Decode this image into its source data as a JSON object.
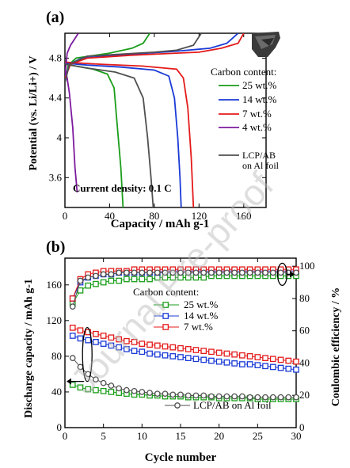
{
  "watermark": "Journal Pre-proof",
  "chart_data": [
    {
      "panel": "(a)",
      "type": "line",
      "xlabel": "Capacity / mAh g-1",
      "ylabel": "Potential (vs. Li/Li+) / V",
      "xlim": [
        0,
        180
      ],
      "ylim": [
        3.3,
        5.05
      ],
      "xticks": [
        "0",
        "40",
        "80",
        "120",
        "160"
      ],
      "yticks": [
        "3.6",
        "4",
        "4.4",
        "4.8"
      ],
      "legend_title": "Carbon content:",
      "legend_position": "right",
      "annotation": "Current density: 0.1 C",
      "inset_image": "photo of electrode film",
      "series": [
        {
          "name": "25 wt.%",
          "color": "#1a9e1a",
          "charge": [
            [
              0,
              4.55
            ],
            [
              3,
              4.73
            ],
            [
              10,
              4.8
            ],
            [
              40,
              4.85
            ],
            [
              60,
              4.9
            ],
            [
              70,
              4.95
            ],
            [
              76,
              5.05
            ]
          ],
          "discharge": [
            [
              0,
              4.74
            ],
            [
              10,
              4.72
            ],
            [
              25,
              4.69
            ],
            [
              38,
              4.64
            ],
            [
              44,
              4.5
            ],
            [
              47,
              4.1
            ],
            [
              50,
              3.7
            ],
            [
              52,
              3.3
            ]
          ]
        },
        {
          "name": "14 wt.%",
          "color": "#1a3ad6",
          "charge": [
            [
              0,
              4.58
            ],
            [
              4,
              4.74
            ],
            [
              15,
              4.8
            ],
            [
              60,
              4.84
            ],
            [
              100,
              4.87
            ],
            [
              130,
              4.9
            ],
            [
              145,
              4.95
            ],
            [
              155,
              5.05
            ]
          ],
          "discharge": [
            [
              0,
              4.75
            ],
            [
              20,
              4.73
            ],
            [
              50,
              4.71
            ],
            [
              80,
              4.68
            ],
            [
              93,
              4.62
            ],
            [
              98,
              4.4
            ],
            [
              101,
              4.0
            ],
            [
              103,
              3.6
            ],
            [
              104,
              3.3
            ]
          ]
        },
        {
          "name": "7 wt.%",
          "color": "#e41a1a",
          "charge": [
            [
              0,
              4.6
            ],
            [
              5,
              4.74
            ],
            [
              20,
              4.8
            ],
            [
              60,
              4.83
            ],
            [
              100,
              4.85
            ],
            [
              120,
              4.86
            ],
            [
              140,
              4.9
            ],
            [
              155,
              4.95
            ],
            [
              160,
              5.05
            ]
          ],
          "discharge": [
            [
              0,
              4.76
            ],
            [
              30,
              4.74
            ],
            [
              70,
              4.72
            ],
            [
              100,
              4.69
            ],
            [
              106,
              4.6
            ],
            [
              110,
              4.3
            ],
            [
              113,
              3.8
            ],
            [
              115,
              3.3
            ]
          ]
        },
        {
          "name": "4 wt.%",
          "color": "#7d1a9e",
          "charge": [
            [
              0,
              4.62
            ],
            [
              2,
              4.85
            ],
            [
              5,
              4.93
            ],
            [
              8,
              4.98
            ],
            [
              12,
              5.05
            ]
          ],
          "discharge": [
            [
              0,
              4.7
            ],
            [
              2,
              4.6
            ],
            [
              4,
              4.45
            ],
            [
              7,
              4.1
            ],
            [
              9,
              3.7
            ],
            [
              11,
              3.45
            ]
          ]
        },
        {
          "name": "LCP/AB on Al foil",
          "color": "#505050",
          "charge": [
            [
              0,
              4.55
            ],
            [
              4,
              4.74
            ],
            [
              20,
              4.82
            ],
            [
              80,
              4.86
            ],
            [
              100,
              4.88
            ],
            [
              115,
              4.93
            ],
            [
              122,
              5.05
            ]
          ],
          "discharge": [
            [
              0,
              4.74
            ],
            [
              20,
              4.7
            ],
            [
              45,
              4.66
            ],
            [
              62,
              4.6
            ],
            [
              70,
              4.4
            ],
            [
              74,
              4.0
            ],
            [
              77,
              3.6
            ],
            [
              79,
              3.3
            ]
          ]
        }
      ]
    },
    {
      "panel": "(b)",
      "type": "scatter",
      "xlabel": "Cycle number",
      "ylabel": "Discharge capacity / mAh g-1",
      "y2label": "Coulombic efficiency / %",
      "xlim": [
        0,
        30
      ],
      "ylim": [
        0,
        190
      ],
      "y2lim": [
        0,
        105
      ],
      "xticks": [
        "0",
        "5",
        "10",
        "15",
        "20",
        "25",
        "30"
      ],
      "yticks": [
        "0",
        "40",
        "80",
        "120",
        "160"
      ],
      "y2ticks": [
        "0",
        "20",
        "40",
        "60",
        "80",
        "100"
      ],
      "legend_title": "Carbon content:",
      "legend_position": "center",
      "series": [
        {
          "name": "25 wt.%",
          "color": "#1a9e1a",
          "capacity": [
            48,
            45,
            43,
            42,
            41,
            40,
            39,
            38,
            37,
            37,
            36,
            36,
            35,
            35,
            35,
            34,
            34,
            34,
            34,
            33,
            33,
            33,
            33,
            33,
            32,
            32,
            32,
            32,
            32,
            32
          ],
          "efficiency": [
            77,
            85,
            88,
            89,
            90,
            91,
            91,
            92,
            92,
            92,
            92,
            93,
            93,
            93,
            93,
            93,
            93,
            93,
            94,
            94,
            94,
            94,
            94,
            94,
            94,
            94,
            94,
            94,
            94,
            94
          ]
        },
        {
          "name": "14 wt.%",
          "color": "#1a3ad6",
          "capacity": [
            103,
            100,
            98,
            96,
            94,
            92,
            90,
            88,
            86,
            85,
            83,
            82,
            81,
            80,
            79,
            78,
            77,
            76,
            75,
            74,
            73,
            72,
            71,
            71,
            70,
            69,
            68,
            67,
            66,
            65
          ],
          "efficiency": [
            80,
            90,
            93,
            94,
            95,
            95,
            96,
            96,
            96,
            96,
            96,
            96,
            97,
            97,
            97,
            97,
            97,
            97,
            97,
            97,
            97,
            97,
            97,
            97,
            97,
            97,
            97,
            97,
            97,
            97
          ]
        },
        {
          "name": "7 wt.%",
          "color": "#e41a1a",
          "capacity": [
            112,
            109,
            107,
            105,
            103,
            101,
            99,
            97,
            96,
            94,
            93,
            92,
            91,
            90,
            89,
            88,
            87,
            86,
            85,
            84,
            83,
            82,
            81,
            80,
            79,
            78,
            77,
            76,
            75,
            74
          ],
          "efficiency": [
            80,
            92,
            95,
            96,
            97,
            97,
            97,
            97,
            98,
            98,
            98,
            98,
            98,
            98,
            98,
            98,
            98,
            98,
            98,
            98,
            98,
            98,
            98,
            98,
            98,
            98,
            98,
            98,
            98,
            98
          ]
        },
        {
          "name": "LCP/AB on Al foil",
          "color": "#505050",
          "capacity": [
            78,
            68,
            60,
            54,
            50,
            47,
            44,
            42,
            41,
            40,
            39,
            38,
            38,
            37,
            37,
            36,
            36,
            36,
            35,
            35,
            35,
            35,
            35,
            34,
            34,
            34,
            34,
            34,
            34,
            34
          ],
          "efficiency": [
            75,
            91,
            93,
            94,
            95,
            95,
            96,
            96,
            96,
            96,
            96,
            96,
            96,
            96,
            96,
            96,
            96,
            96,
            96,
            96,
            96,
            96,
            96,
            96,
            96,
            96,
            96,
            96,
            96,
            96
          ]
        }
      ]
    }
  ]
}
